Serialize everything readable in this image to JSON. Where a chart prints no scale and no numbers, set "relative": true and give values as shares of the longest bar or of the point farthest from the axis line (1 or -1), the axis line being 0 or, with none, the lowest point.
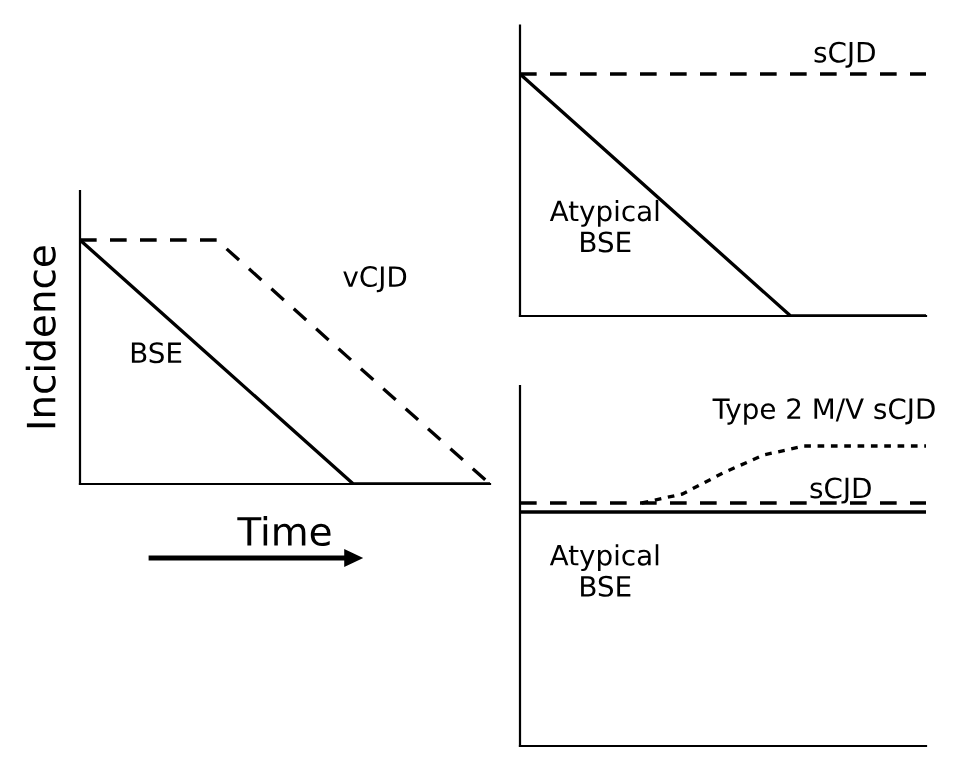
{
  "chart_data": [
    {
      "type": "line",
      "relative": true,
      "ylabel": "Incidence",
      "xlabel": "Time",
      "categories": [
        null,
        null,
        null,
        null
      ],
      "series": [
        {
          "name": "BSE",
          "color": "#000000",
          "line_style": "solid",
          "values": [
            1,
            0.5,
            0,
            0
          ]
        },
        {
          "name": "vCJD",
          "color": "#000000",
          "line_style": "dashed",
          "values": [
            1,
            1,
            0.5,
            0
          ]
        }
      ]
    },
    {
      "type": "line",
      "relative": true,
      "categories": [
        null,
        null,
        null,
        null
      ],
      "series": [
        {
          "name": "Atypical BSE",
          "color": "#000000",
          "line_style": "solid",
          "values": [
            1,
            0.5,
            0,
            0
          ]
        },
        {
          "name": "sCJD",
          "color": "#000000",
          "line_style": "dashed",
          "values": [
            1,
            1,
            1,
            1
          ]
        }
      ]
    },
    {
      "type": "line",
      "relative": true,
      "categories": [
        null,
        null,
        null,
        null,
        null,
        null,
        null,
        null,
        null,
        null,
        null
      ],
      "series": [
        {
          "name": "Atypical BSE",
          "color": "#000000",
          "line_style": "solid",
          "values": [
            0.78,
            0.78,
            0.78,
            0.78,
            0.78,
            0.78,
            0.78,
            0.78,
            0.78,
            0.78,
            0.78
          ]
        },
        {
          "name": "sCJD",
          "color": "#000000",
          "line_style": "dashed",
          "values": [
            0.81,
            0.81,
            0.81,
            0.81,
            0.81,
            0.81,
            0.81,
            0.81,
            0.81,
            0.81,
            0.81
          ]
        },
        {
          "name": "Type 2 M/V sCJD",
          "color": "#000000",
          "line_style": "dotted",
          "values": [
            null,
            null,
            null,
            0.81,
            0.84,
            0.91,
            0.97,
            1,
            1,
            1,
            1
          ]
        }
      ]
    }
  ]
}
